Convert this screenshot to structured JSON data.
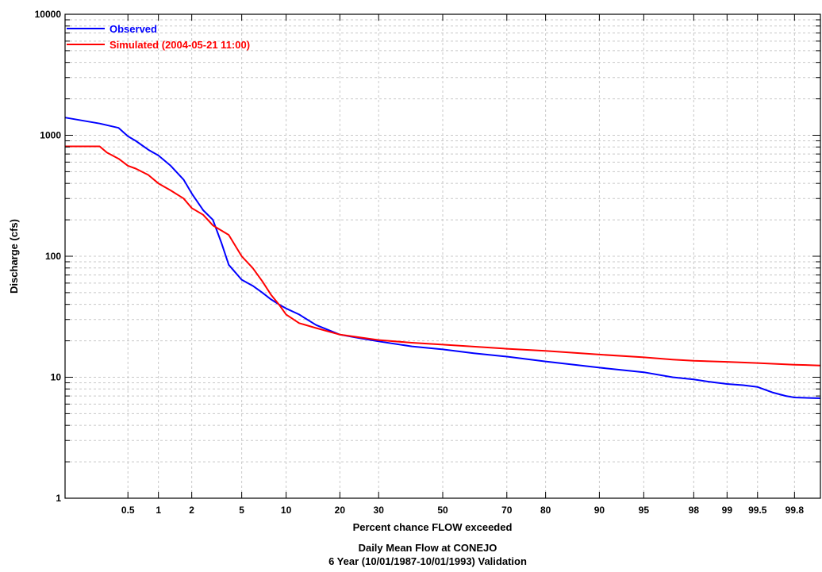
{
  "chart_data": {
    "type": "line",
    "title": "Daily Mean Flow at CONEJO",
    "subtitle": "6 Year (10/01/1987-10/01/1993) Validation",
    "xlabel": "Percent chance FLOW exceeded",
    "ylabel": "Discharge (cfs)",
    "x_scale": "normal-probability",
    "y_scale": "log",
    "xlim": [
      0.1,
      99.9
    ],
    "ylim": [
      1,
      10000
    ],
    "x_ticks": [
      "0.5",
      "1",
      "2",
      "5",
      "10",
      "20",
      "30",
      "50",
      "70",
      "80",
      "90",
      "95",
      "98",
      "99",
      "99.5",
      "99.8"
    ],
    "y_ticks": [
      "1",
      "10",
      "100",
      "1000",
      "10000"
    ],
    "grid": true,
    "legend": "top-left",
    "series": [
      {
        "name": "Observed",
        "color": "#0000ff",
        "points": [
          [
            0.1,
            1400
          ],
          [
            0.25,
            1250
          ],
          [
            0.4,
            1150
          ],
          [
            0.5,
            980
          ],
          [
            0.6,
            900
          ],
          [
            0.8,
            760
          ],
          [
            1,
            680
          ],
          [
            1.3,
            560
          ],
          [
            1.7,
            430
          ],
          [
            2,
            330
          ],
          [
            2.5,
            240
          ],
          [
            3,
            200
          ],
          [
            3.5,
            130
          ],
          [
            4,
            85
          ],
          [
            5,
            64
          ],
          [
            6,
            57
          ],
          [
            7,
            50
          ],
          [
            8,
            44
          ],
          [
            9,
            40
          ],
          [
            10,
            37
          ],
          [
            12,
            33
          ],
          [
            15,
            27
          ],
          [
            20,
            22.5
          ],
          [
            25,
            21
          ],
          [
            30,
            19.8
          ],
          [
            40,
            18
          ],
          [
            50,
            17
          ],
          [
            60,
            15.8
          ],
          [
            70,
            14.8
          ],
          [
            80,
            13.5
          ],
          [
            90,
            12
          ],
          [
            95,
            11
          ],
          [
            97,
            10
          ],
          [
            98,
            9.6
          ],
          [
            98.5,
            9.2
          ],
          [
            99,
            8.8
          ],
          [
            99.3,
            8.6
          ],
          [
            99.5,
            8.3
          ],
          [
            99.65,
            7.5
          ],
          [
            99.75,
            7
          ],
          [
            99.8,
            6.8
          ],
          [
            99.9,
            6.7
          ]
        ]
      },
      {
        "name": "Simulated (2004-05-21 11:00)",
        "color": "#ff0000",
        "points": [
          [
            0.1,
            810
          ],
          [
            0.25,
            810
          ],
          [
            0.3,
            720
          ],
          [
            0.4,
            640
          ],
          [
            0.5,
            560
          ],
          [
            0.6,
            530
          ],
          [
            0.8,
            470
          ],
          [
            1,
            400
          ],
          [
            1.3,
            350
          ],
          [
            1.7,
            300
          ],
          [
            2,
            250
          ],
          [
            2.5,
            220
          ],
          [
            3,
            180
          ],
          [
            4,
            150
          ],
          [
            5,
            100
          ],
          [
            6,
            80
          ],
          [
            7,
            62
          ],
          [
            8,
            48
          ],
          [
            9,
            40
          ],
          [
            10,
            33
          ],
          [
            12,
            28
          ],
          [
            15,
            25.5
          ],
          [
            20,
            22.5
          ],
          [
            30,
            20.3
          ],
          [
            40,
            19.3
          ],
          [
            50,
            18.6
          ],
          [
            60,
            17.9
          ],
          [
            70,
            17.2
          ],
          [
            80,
            16.5
          ],
          [
            90,
            15.4
          ],
          [
            95,
            14.6
          ],
          [
            97,
            14
          ],
          [
            98,
            13.7
          ],
          [
            99,
            13.4
          ],
          [
            99.5,
            13.1
          ],
          [
            99.8,
            12.7
          ],
          [
            99.9,
            12.5
          ]
        ]
      }
    ]
  }
}
